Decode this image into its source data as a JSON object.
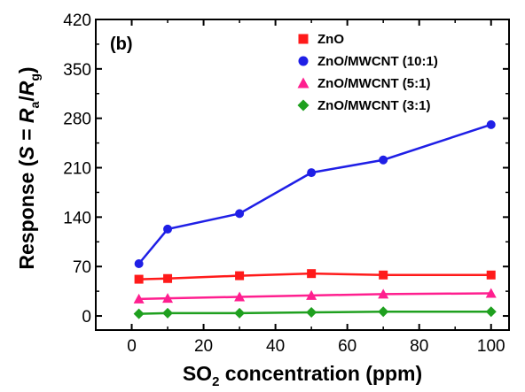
{
  "chart_data": {
    "type": "line",
    "panel_label": "(b)",
    "xlabel": "SO₂ concentration (ppm)",
    "ylabel": "Response (S = Rₐ/Rᵍ)",
    "xlabel_parts": {
      "pre": "SO",
      "sub": "2",
      "post": " concentration (ppm)"
    },
    "ylabel_parts": {
      "pre": "Response (",
      "sym": "S",
      "eq": " = ",
      "r1": "R",
      "s1": "a",
      "slash": "/",
      "r2": "R",
      "s2": "g",
      "close": ")"
    },
    "xlim": [
      -10,
      105
    ],
    "ylim": [
      -20,
      420
    ],
    "xticks": [
      0,
      20,
      40,
      60,
      80,
      100
    ],
    "yticks": [
      0,
      70,
      140,
      210,
      280,
      350,
      420
    ],
    "grid": false,
    "legend_position": "top-right",
    "x": [
      2,
      10,
      30,
      50,
      70,
      100
    ],
    "series": [
      {
        "name": "ZnO",
        "marker": "square",
        "color": "#ff1a1a",
        "values": [
          52,
          53,
          57,
          60,
          58,
          58
        ]
      },
      {
        "name": "ZnO/MWCNT (10:1)",
        "marker": "circle",
        "color": "#1f1fe6",
        "values": [
          74,
          123,
          145,
          203,
          221,
          271
        ]
      },
      {
        "name": "ZnO/MWCNT (5:1)",
        "marker": "triangle",
        "color": "#ff1f8f",
        "values": [
          24,
          25,
          27,
          29,
          31,
          32
        ]
      },
      {
        "name": "ZnO/MWCNT (3:1)",
        "marker": "diamond",
        "color": "#1fa01f",
        "values": [
          3,
          4,
          4,
          5,
          6,
          6
        ]
      }
    ]
  }
}
